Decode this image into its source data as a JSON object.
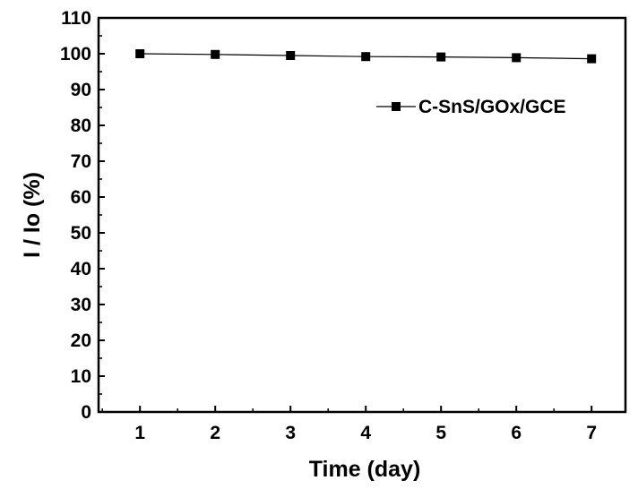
{
  "chart_data": {
    "type": "line",
    "xlabel": "Time (day)",
    "ylabel": "I / Io (%)",
    "xlim": [
      0.45,
      7.45
    ],
    "ylim": [
      0,
      110
    ],
    "x_ticks": [
      1,
      2,
      3,
      4,
      5,
      6,
      7
    ],
    "y_ticks": [
      0,
      10,
      20,
      30,
      40,
      50,
      60,
      70,
      80,
      90,
      100,
      110
    ],
    "grid": false,
    "legend_position": "top-right",
    "series": [
      {
        "name": "C-SnS/GOx/GCE",
        "marker": "square",
        "color": "#000000",
        "x": [
          1,
          2,
          3,
          4,
          5,
          6,
          7
        ],
        "y": [
          100,
          99.8,
          99.5,
          99.2,
          99.1,
          98.9,
          98.6
        ]
      }
    ]
  }
}
